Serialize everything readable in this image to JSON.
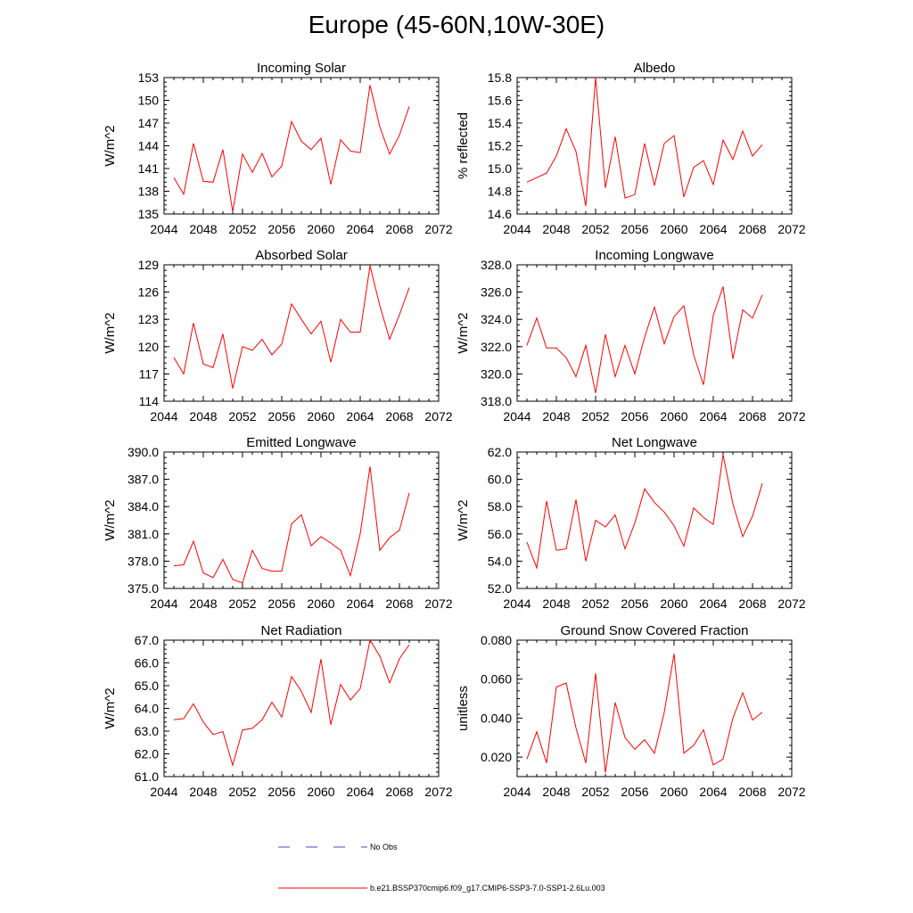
{
  "figure_title": "Europe (45-60N,10W-30E)",
  "legend": {
    "obs_label": "No Obs",
    "obs_color": "#3b4cc0",
    "model_label": "b.e21.BSSP370cmip6.f09_g17.CMIP6-SSP3-7.0-SSP1-2.6Lu.003",
    "model_color": "#ff0000"
  },
  "chart_data": [
    {
      "type": "line",
      "title": "Incoming Solar",
      "ylabel": "W/m^2",
      "xlim": [
        2044,
        2072
      ],
      "xticks": [
        2044,
        2048,
        2052,
        2056,
        2060,
        2064,
        2068,
        2072
      ],
      "ylim": [
        135,
        153
      ],
      "yticks": [
        "135",
        "138",
        "141",
        "144",
        "147",
        "150",
        "153"
      ],
      "color": "#ff0000",
      "x": [
        2045,
        2046,
        2047,
        2048,
        2049,
        2050,
        2051,
        2052,
        2053,
        2054,
        2055,
        2056,
        2057,
        2058,
        2059,
        2060,
        2061,
        2062,
        2063,
        2064,
        2065,
        2066,
        2067,
        2068,
        2069
      ],
      "y": [
        139.8,
        137.6,
        144.3,
        139.3,
        139.2,
        143.5,
        135.3,
        142.9,
        140.5,
        143.0,
        139.9,
        141.3,
        147.2,
        144.6,
        143.5,
        145.0,
        138.9,
        144.8,
        143.3,
        143.1,
        152.0,
        146.5,
        142.9,
        145.4,
        149.2
      ]
    },
    {
      "type": "line",
      "title": "Albedo",
      "ylabel": "% reflected",
      "xlim": [
        2044,
        2072
      ],
      "xticks": [
        2044,
        2048,
        2052,
        2056,
        2060,
        2064,
        2068,
        2072
      ],
      "ylim": [
        14.6,
        15.8
      ],
      "yticks": [
        "14.6",
        "14.8",
        "15.0",
        "15.2",
        "15.4",
        "15.6",
        "15.8"
      ],
      "color": "#ff0000",
      "x": [
        2045,
        2046,
        2047,
        2048,
        2049,
        2050,
        2051,
        2052,
        2053,
        2054,
        2055,
        2056,
        2057,
        2058,
        2059,
        2060,
        2061,
        2062,
        2063,
        2064,
        2065,
        2066,
        2067,
        2068,
        2069
      ],
      "y": [
        14.88,
        14.92,
        14.96,
        15.11,
        15.35,
        15.15,
        14.67,
        15.8,
        14.83,
        15.28,
        14.74,
        14.77,
        15.22,
        14.85,
        15.22,
        15.29,
        14.75,
        15.01,
        15.07,
        14.86,
        15.25,
        15.08,
        15.33,
        15.11,
        15.21
      ]
    },
    {
      "type": "line",
      "title": "Absorbed Solar",
      "ylabel": "W/m^2",
      "xlim": [
        2044,
        2072
      ],
      "xticks": [
        2044,
        2048,
        2052,
        2056,
        2060,
        2064,
        2068,
        2072
      ],
      "ylim": [
        114,
        129
      ],
      "yticks": [
        "114",
        "117",
        "120",
        "123",
        "126",
        "129"
      ],
      "color": "#ff0000",
      "x": [
        2045,
        2046,
        2047,
        2048,
        2049,
        2050,
        2051,
        2052,
        2053,
        2054,
        2055,
        2056,
        2057,
        2058,
        2059,
        2060,
        2061,
        2062,
        2063,
        2064,
        2065,
        2066,
        2067,
        2068,
        2069
      ],
      "y": [
        118.8,
        117.0,
        122.6,
        118.1,
        117.7,
        121.4,
        115.4,
        120.0,
        119.6,
        120.8,
        119.1,
        120.3,
        124.7,
        123.0,
        121.4,
        122.8,
        118.3,
        123.0,
        121.6,
        121.6,
        128.9,
        124.5,
        120.8,
        123.5,
        126.5
      ]
    },
    {
      "type": "line",
      "title": "Incoming Longwave",
      "ylabel": "W/m^2",
      "xlim": [
        2044,
        2072
      ],
      "xticks": [
        2044,
        2048,
        2052,
        2056,
        2060,
        2064,
        2068,
        2072
      ],
      "ylim": [
        318,
        328
      ],
      "yticks": [
        "318.0",
        "320.0",
        "322.0",
        "324.0",
        "326.0",
        "328.0"
      ],
      "color": "#ff0000",
      "x": [
        2045,
        2046,
        2047,
        2048,
        2049,
        2050,
        2051,
        2052,
        2053,
        2054,
        2055,
        2056,
        2057,
        2058,
        2059,
        2060,
        2061,
        2062,
        2063,
        2064,
        2065,
        2066,
        2067,
        2068,
        2069
      ],
      "y": [
        322.1,
        324.1,
        321.9,
        321.9,
        321.2,
        319.8,
        322.1,
        318.6,
        322.9,
        319.8,
        322.1,
        320.0,
        322.7,
        324.9,
        322.2,
        324.2,
        325.0,
        321.4,
        319.2,
        324.3,
        326.4,
        321.1,
        324.7,
        324.1,
        325.8
      ]
    },
    {
      "type": "line",
      "title": "Emitted Longwave",
      "ylabel": "W/m^2",
      "xlim": [
        2044,
        2072
      ],
      "xticks": [
        2044,
        2048,
        2052,
        2056,
        2060,
        2064,
        2068,
        2072
      ],
      "ylim": [
        375,
        390
      ],
      "yticks": [
        "375.0",
        "378.0",
        "381.0",
        "384.0",
        "387.0",
        "390.0"
      ],
      "color": "#ff0000",
      "x": [
        2045,
        2046,
        2047,
        2048,
        2049,
        2050,
        2051,
        2052,
        2053,
        2054,
        2055,
        2056,
        2057,
        2058,
        2059,
        2060,
        2061,
        2062,
        2063,
        2064,
        2065,
        2066,
        2067,
        2068,
        2069
      ],
      "y": [
        377.5,
        377.6,
        380.2,
        376.7,
        376.2,
        378.2,
        376.0,
        375.6,
        379.2,
        377.2,
        376.9,
        376.9,
        382.1,
        383.1,
        379.7,
        380.7,
        380.0,
        379.2,
        376.4,
        381.0,
        388.4,
        379.2,
        380.6,
        381.4,
        385.5
      ]
    },
    {
      "type": "line",
      "title": "Net Longwave",
      "ylabel": "W/m^2",
      "xlim": [
        2044,
        2072
      ],
      "xticks": [
        2044,
        2048,
        2052,
        2056,
        2060,
        2064,
        2068,
        2072
      ],
      "ylim": [
        52,
        62
      ],
      "yticks": [
        "52.0",
        "54.0",
        "56.0",
        "58.0",
        "60.0",
        "62.0"
      ],
      "color": "#ff0000",
      "x": [
        2045,
        2046,
        2047,
        2048,
        2049,
        2050,
        2051,
        2052,
        2053,
        2054,
        2055,
        2056,
        2057,
        2058,
        2059,
        2060,
        2061,
        2062,
        2063,
        2064,
        2065,
        2066,
        2067,
        2068,
        2069
      ],
      "y": [
        55.4,
        53.5,
        58.4,
        54.8,
        54.9,
        58.5,
        54.0,
        57.0,
        56.5,
        57.4,
        54.9,
        56.8,
        59.3,
        58.3,
        57.6,
        56.6,
        55.1,
        57.9,
        57.2,
        56.7,
        61.8,
        58.2,
        55.8,
        57.3,
        59.7
      ]
    },
    {
      "type": "line",
      "title": "Net Radiation",
      "ylabel": "W/m^2",
      "xlim": [
        2044,
        2072
      ],
      "xticks": [
        2044,
        2048,
        2052,
        2056,
        2060,
        2064,
        2068,
        2072
      ],
      "ylim": [
        61,
        67
      ],
      "yticks": [
        "61.0",
        "62.0",
        "63.0",
        "64.0",
        "65.0",
        "66.0",
        "67.0"
      ],
      "color": "#ff0000",
      "x": [
        2045,
        2046,
        2047,
        2048,
        2049,
        2050,
        2051,
        2052,
        2053,
        2054,
        2055,
        2056,
        2057,
        2058,
        2059,
        2060,
        2061,
        2062,
        2063,
        2064,
        2065,
        2066,
        2067,
        2068,
        2069
      ],
      "y": [
        63.5,
        63.55,
        64.2,
        63.4,
        62.85,
        62.98,
        61.5,
        63.05,
        63.12,
        63.5,
        64.27,
        63.62,
        65.4,
        64.75,
        63.82,
        66.17,
        63.28,
        65.05,
        64.37,
        64.87,
        67.0,
        66.3,
        65.12,
        66.18,
        66.8
      ]
    },
    {
      "type": "line",
      "title": "Ground Snow Covered Fraction",
      "ylabel": "unitless",
      "xlim": [
        2044,
        2072
      ],
      "xticks": [
        2044,
        2048,
        2052,
        2056,
        2060,
        2064,
        2068,
        2072
      ],
      "ylim": [
        0.01,
        0.08
      ],
      "yticks": [
        "0.020",
        "0.040",
        "0.060",
        "0.080"
      ],
      "ytick_values": [
        0.02,
        0.04,
        0.06,
        0.08
      ],
      "color": "#ff0000",
      "x": [
        2045,
        2046,
        2047,
        2048,
        2049,
        2050,
        2051,
        2052,
        2053,
        2054,
        2055,
        2056,
        2057,
        2058,
        2059,
        2060,
        2061,
        2062,
        2063,
        2064,
        2065,
        2066,
        2067,
        2068,
        2069
      ],
      "y": [
        0.019,
        0.033,
        0.017,
        0.056,
        0.058,
        0.035,
        0.017,
        0.063,
        0.012,
        0.048,
        0.03,
        0.024,
        0.029,
        0.022,
        0.043,
        0.073,
        0.022,
        0.026,
        0.034,
        0.016,
        0.019,
        0.04,
        0.053,
        0.039,
        0.043
      ]
    }
  ]
}
